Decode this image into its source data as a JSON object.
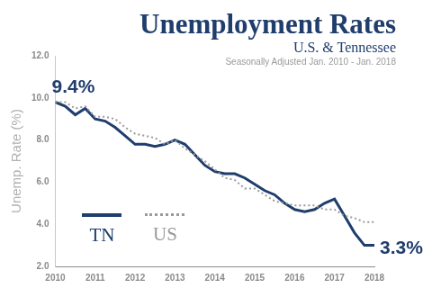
{
  "chart_data": {
    "type": "line",
    "title": "Unemployment Rates",
    "subtitle": "U.S. & Tennessee",
    "note": "Seasonally Adjusted Jan. 2010 - Jan. 2018",
    "y_label": "Unemp. Rate (%)",
    "annotations": [
      {
        "text": "9.4%"
      },
      {
        "text": "3.3%"
      }
    ],
    "x": [
      2010,
      2010.25,
      2010.5,
      2010.75,
      2011,
      2011.25,
      2011.5,
      2011.75,
      2012,
      2012.25,
      2012.5,
      2012.75,
      2013,
      2013.25,
      2013.5,
      2013.75,
      2014,
      2014.25,
      2014.5,
      2014.75,
      2015,
      2015.25,
      2015.5,
      2015.75,
      2016,
      2016.25,
      2016.5,
      2016.75,
      2017,
      2017.25,
      2017.5,
      2017.75,
      2018
    ],
    "series": [
      {
        "name": "TN",
        "color": "#1f3d6d",
        "line_style": "solid",
        "marker": "none",
        "values": [
          9.8,
          9.6,
          9.2,
          9.5,
          9.0,
          8.9,
          8.6,
          8.2,
          7.8,
          7.8,
          7.7,
          7.8,
          8.0,
          7.8,
          7.3,
          6.8,
          6.5,
          6.4,
          6.4,
          6.2,
          5.9,
          5.6,
          5.4,
          5.0,
          4.7,
          4.6,
          4.7,
          5.0,
          5.2,
          4.4,
          3.6,
          3.0,
          3.0
        ]
      },
      {
        "name": "US",
        "color": "#9a9a9a",
        "line_style": "dotted",
        "marker": "none",
        "values": [
          9.8,
          9.8,
          9.5,
          9.6,
          9.1,
          9.1,
          9.0,
          8.6,
          8.3,
          8.2,
          8.1,
          7.8,
          8.0,
          7.6,
          7.3,
          7.0,
          6.6,
          6.2,
          6.1,
          5.7,
          5.7,
          5.4,
          5.1,
          5.0,
          4.9,
          4.9,
          4.9,
          4.7,
          4.7,
          4.4,
          4.3,
          4.1,
          4.1
        ]
      }
    ],
    "xlim": [
      2010,
      2018
    ],
    "xticks": [
      2010,
      2011,
      2012,
      2013,
      2014,
      2015,
      2016,
      2017,
      2018
    ],
    "ylim": [
      2,
      12
    ],
    "yticks": [
      {
        "value": 2,
        "label": "2.0"
      },
      {
        "value": 4,
        "label": "4.0"
      },
      {
        "value": 6,
        "label": "6.0"
      },
      {
        "value": 8,
        "label": "8.0"
      },
      {
        "value": 10,
        "label": "10.0"
      },
      {
        "value": 12,
        "label": "12.0"
      }
    ],
    "grid": false,
    "legend": "lower left"
  }
}
